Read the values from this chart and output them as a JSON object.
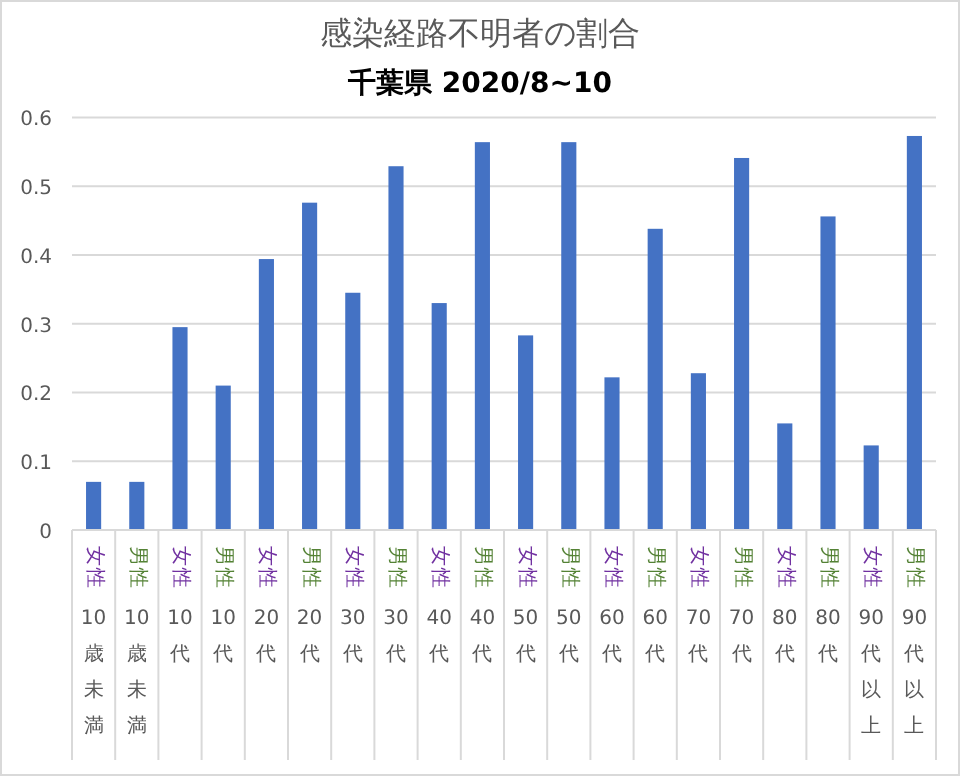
{
  "chart_data": {
    "type": "bar",
    "title": "感染経路不明者の割合",
    "subtitle": "千葉県 2020/8~10",
    "categories": [
      "女性10歳未満",
      "男性10歳未満",
      "女性10代",
      "男性10代",
      "女性20代",
      "男性20代",
      "女性30代",
      "男性30代",
      "女性40代",
      "男性40代",
      "女性50代",
      "男性50代",
      "女性60代",
      "男性60代",
      "女性70代",
      "男性70代",
      "女性80代",
      "男性80代",
      "女性90代以上",
      "男性90代以上"
    ],
    "values": [
      0.07,
      0.07,
      0.295,
      0.21,
      0.394,
      0.476,
      0.345,
      0.529,
      0.33,
      0.564,
      0.283,
      0.564,
      0.222,
      0.438,
      0.228,
      0.541,
      0.155,
      0.456,
      0.123,
      0.573
    ],
    "color": "#4472c4",
    "ylim": [
      0,
      0.6
    ],
    "yticks": [
      0,
      0.1,
      0.2,
      0.3,
      0.4,
      0.5,
      0.6
    ],
    "grid": "y"
  }
}
